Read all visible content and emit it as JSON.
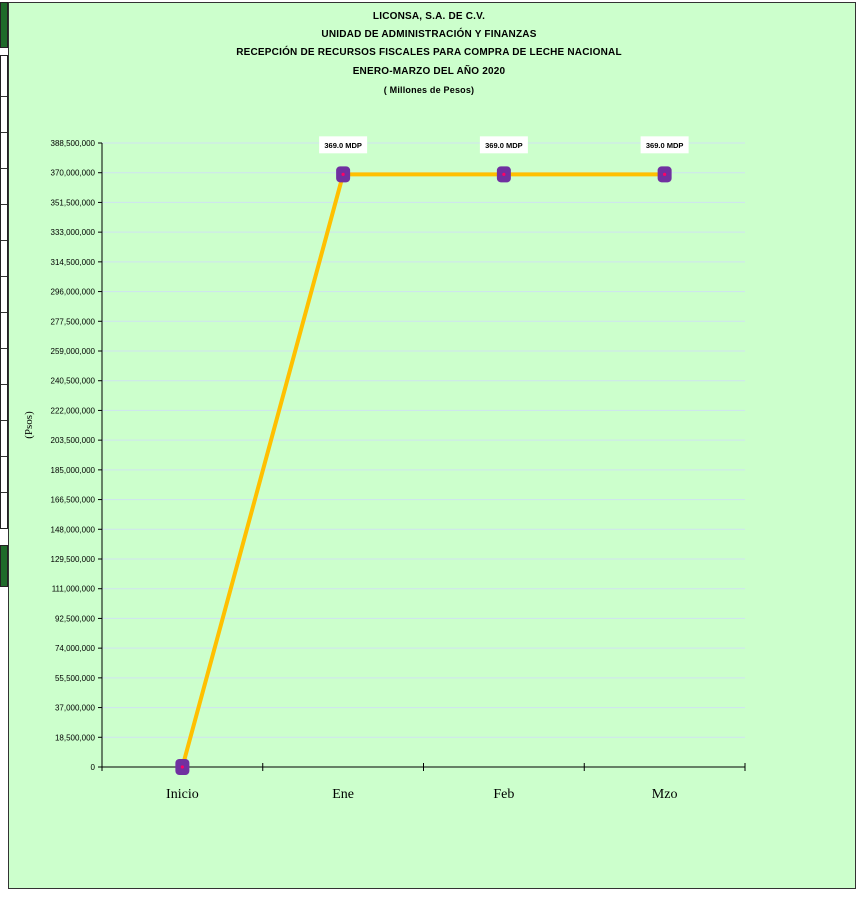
{
  "chart_data": {
    "type": "line",
    "title_lines": [
      "LICONSA, S.A. DE C.V.",
      "UNIDAD DE ADMINISTRACIÓN Y FINANZAS",
      "RECEPCIÓN DE RECURSOS FISCALES PARA COMPRA DE LECHE NACIONAL",
      "ENERO-MARZO DEL AÑO 2020",
      "( Millones de Pesos)"
    ],
    "ylabel": "(Psos)",
    "xlabel": "",
    "categories": [
      "Inicio",
      "Ene",
      "Feb",
      "Mzo"
    ],
    "series": [
      {
        "values": [
          0,
          369000000,
          369000000,
          369000000
        ],
        "data_labels": [
          "",
          "369.0 MDP",
          "369.0 MDP",
          "369.0 MDP"
        ]
      }
    ],
    "ylim": [
      0,
      388500000
    ],
    "yticks": [
      0,
      18500000,
      37000000,
      55500000,
      74000000,
      92500000,
      111000000,
      129500000,
      148000000,
      166500000,
      185000000,
      203500000,
      222000000,
      240500000,
      259000000,
      277500000,
      296000000,
      314500000,
      333000000,
      351500000,
      370000000,
      388500000
    ],
    "ytick_labels": [
      "0",
      "18,500,000",
      "37,000,000",
      "55,500,000",
      "74,000,000",
      "92,500,000",
      "111,000,000",
      "129,500,000",
      "148,000,000",
      "166,500,000",
      "185,000,000",
      "203,500,000",
      "222,000,000",
      "240,500,000",
      "259,000,000",
      "277,500,000",
      "296,000,000",
      "314,500,000",
      "333,000,000",
      "351,500,000",
      "370,000,000",
      "388,500,000"
    ],
    "grid": true,
    "legend": "none",
    "colors": {
      "background": "#ccffcc",
      "line": "#ffc000",
      "marker": "#7030a0",
      "marker_center": "#ff0066",
      "gridline": "#cfe3f0"
    }
  }
}
